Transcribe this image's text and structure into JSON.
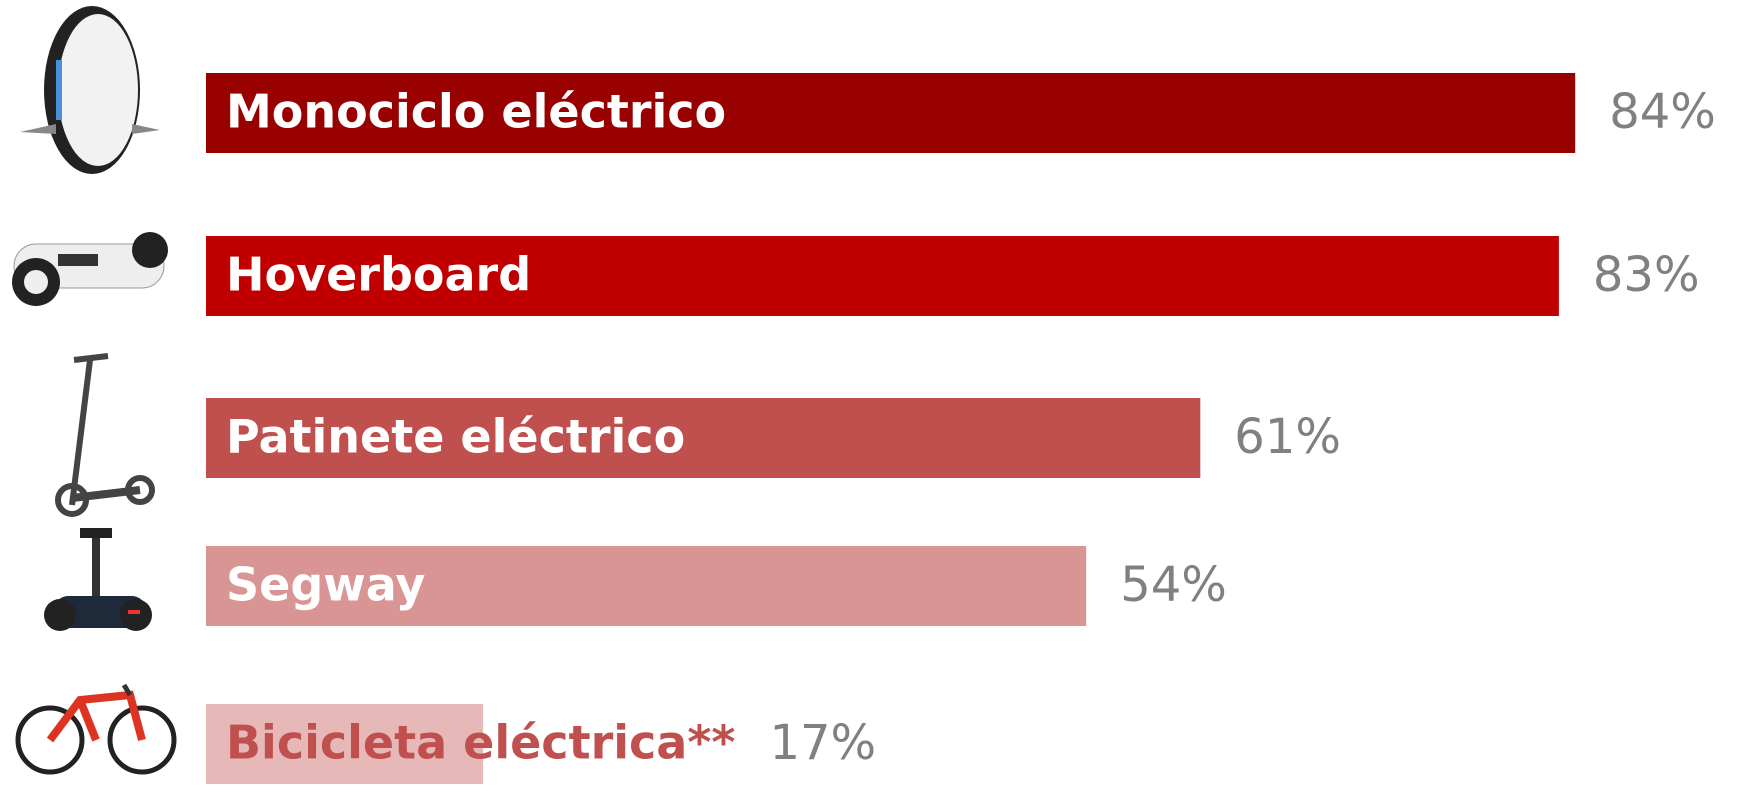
{
  "chart_data": {
    "type": "bar",
    "orientation": "horizontal",
    "categories": [
      "Monociclo eléctrico",
      "Hoverboard",
      "Patinete eléctrico",
      "Segway",
      "Bicicleta eléctrica**"
    ],
    "values": [
      84,
      83,
      61,
      54,
      17
    ],
    "value_labels": [
      "84%",
      "83%",
      "61%",
      "54%",
      "17%"
    ],
    "colors": [
      "#990000",
      "#c00000",
      "#c0504d",
      "#d99594",
      "#e6b8b7"
    ]
  }
}
